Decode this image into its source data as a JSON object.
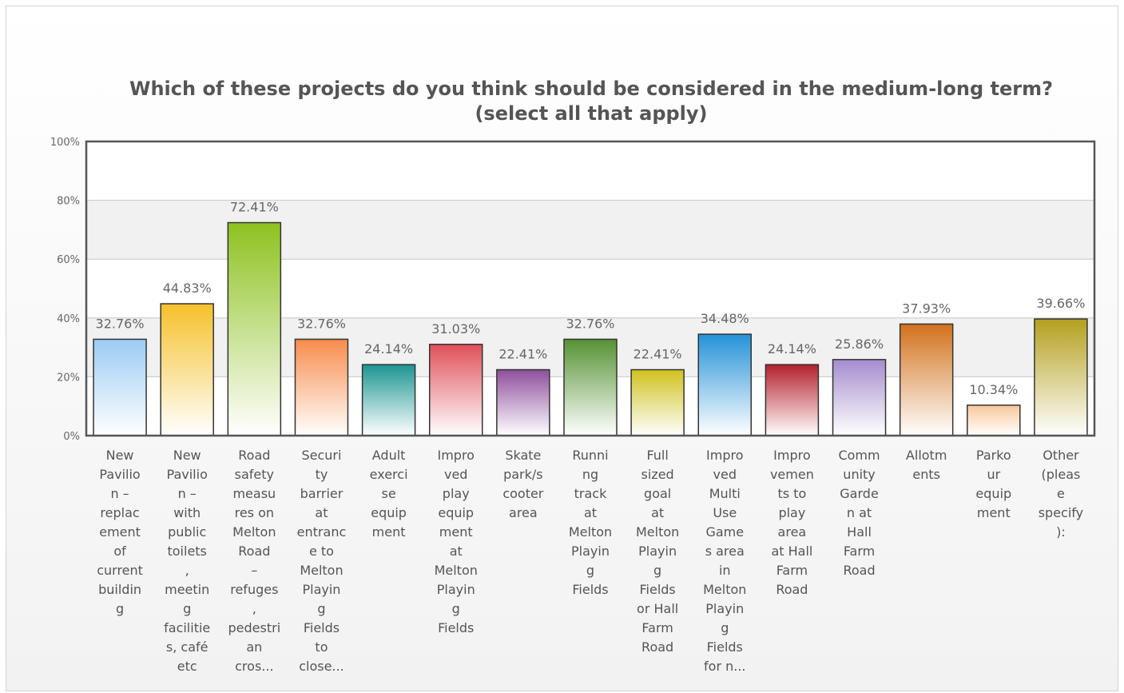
{
  "chart_data": {
    "type": "bar",
    "title": "Which of these projects do you think should be considered in the medium-long term?",
    "subtitle": "(select all that apply)",
    "xlabel": "",
    "ylabel": "",
    "ylim": [
      0,
      100
    ],
    "yticks": [
      "0%",
      "20%",
      "40%",
      "60%",
      "80%",
      "100%"
    ],
    "grid": true,
    "legend": "none",
    "categories": [
      "New Pavilion – replacement of current building",
      "New Pavilion – with public toilets, meeting facilities, café etc",
      "Road safety measures on Melton Road – refuges, pedestrian cros...",
      "Security barrier at entrance to Melton Playing Fields to close...",
      "Adult exercise equipment",
      "Improved play equipment at Melton Playing Fields",
      "Skate park/scooter area",
      "Running track at Melton Playing Fields",
      "Full sized goal at Melton Playing Fields or Hall Farm Road",
      "Improved Multi Use Games area in Melton Playing Fields for n...",
      "Improvements to play area at Hall Farm Road",
      "Community Garden at Hall Farm Road",
      "Allotments",
      "Parkour equipment",
      "Other (please specify):"
    ],
    "category_lines": [
      [
        "New",
        "Pavilio",
        "n –",
        "replac",
        "ement",
        "of",
        "current",
        "buildin",
        "g"
      ],
      [
        "New",
        "Pavilio",
        "n –",
        "with",
        "public",
        "toilets",
        ",",
        "meetin",
        "g",
        "facilitie",
        "s, café",
        "etc"
      ],
      [
        "Road",
        "safety",
        "measu",
        "res on",
        "Melton",
        "Road",
        "–",
        "refuges",
        ",",
        "pedestri",
        "an",
        "cros..."
      ],
      [
        "Securi",
        "ty",
        "barrier",
        "at",
        "entranc",
        "e to",
        "Melton",
        "Playin",
        "g",
        "Fields",
        "to",
        "close..."
      ],
      [
        "Adult",
        "exerci",
        "se",
        "equip",
        "ment"
      ],
      [
        "Impro",
        "ved",
        "play",
        "equip",
        "ment",
        "at",
        "Melton",
        "Playin",
        "g",
        "Fields"
      ],
      [
        "Skate",
        "park/s",
        "cooter",
        "area"
      ],
      [
        "Runni",
        "ng",
        "track",
        "at",
        "Melton",
        "Playin",
        "g",
        "Fields"
      ],
      [
        "Full",
        "sized",
        "goal",
        "at",
        "Melton",
        "Playin",
        "g",
        "Fields",
        "or Hall",
        "Farm",
        "Road"
      ],
      [
        "Impro",
        "ved",
        "Multi",
        "Use",
        "Game",
        "s area",
        "in",
        "Melton",
        "Playin",
        "g",
        "Fields",
        "for n..."
      ],
      [
        "Impro",
        "vemen",
        "ts to",
        "play",
        "area",
        "at Hall",
        "Farm",
        "Road"
      ],
      [
        "Comm",
        "unity",
        "Garde",
        "n at",
        "Hall",
        "Farm",
        "Road"
      ],
      [
        "Allotm",
        "ents"
      ],
      [
        "Parko",
        "ur",
        "equip",
        "ment"
      ],
      [
        "Other",
        "(pleas",
        "e",
        "specify",
        "):"
      ]
    ],
    "values": [
      32.76,
      44.83,
      72.41,
      32.76,
      24.14,
      31.03,
      22.41,
      32.76,
      22.41,
      34.48,
      24.14,
      25.86,
      37.93,
      10.34,
      39.66
    ],
    "value_labels": [
      "32.76%",
      "44.83%",
      "72.41%",
      "32.76%",
      "24.14%",
      "31.03%",
      "22.41%",
      "32.76%",
      "22.41%",
      "34.48%",
      "24.14%",
      "25.86%",
      "37.93%",
      "10.34%",
      "39.66%"
    ],
    "colors": [
      "#9ccbf4",
      "#f5c12a",
      "#8dc21f",
      "#f88c4c",
      "#1c9592",
      "#e0505a",
      "#8e4f9b",
      "#559233",
      "#cfc21f",
      "#2592d8",
      "#b4202c",
      "#a58dcd",
      "#d2721c",
      "#f8c89b",
      "#b4a01f"
    ]
  }
}
